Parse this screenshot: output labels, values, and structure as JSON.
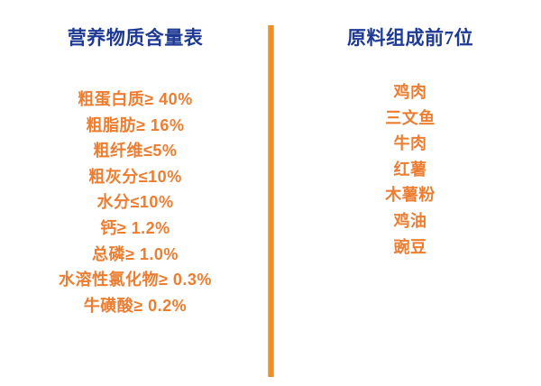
{
  "colors": {
    "background": "#ffffff",
    "title_blue": "#1e3a94",
    "item_orange": "#ed7d31",
    "divider_orange": "#ef8d26"
  },
  "left": {
    "title": "营养物质含量表",
    "items": [
      "粗蛋白质≥ 40%",
      "粗脂肪≥ 16%",
      "粗纤维≤5%",
      "粗灰分≤10%",
      "水分≤10%",
      "钙≥ 1.2%",
      "总磷≥ 1.0%",
      "水溶性氯化物≥ 0.3%",
      "牛磺酸≥ 0.2%"
    ]
  },
  "right": {
    "title": "原料组成前7位",
    "items": [
      "鸡肉",
      "三文鱼",
      "牛肉",
      "红薯",
      "木薯粉",
      "鸡油",
      "豌豆"
    ]
  }
}
